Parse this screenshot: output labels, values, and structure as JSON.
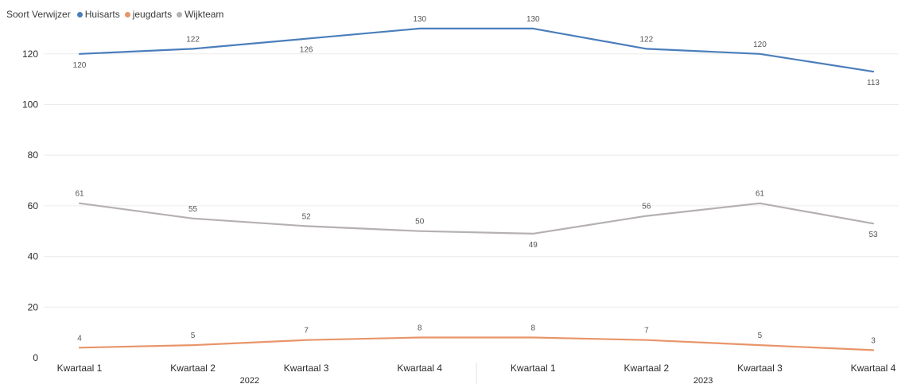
{
  "chart_data": {
    "type": "line",
    "legend": {
      "title": "Soort Verwijzer",
      "placement": "top-left"
    },
    "categories": [
      "Kwartaal 1",
      "Kwartaal 2",
      "Kwartaal 3",
      "Kwartaal 4",
      "Kwartaal 1",
      "Kwartaal 2",
      "Kwartaal 3",
      "Kwartaal 4"
    ],
    "groups": [
      {
        "label": "2022",
        "span": [
          0,
          3
        ]
      },
      {
        "label": "2023",
        "span": [
          4,
          7
        ]
      }
    ],
    "series": [
      {
        "name": "Huisarts",
        "color": "#4a7ebb",
        "values": [
          120,
          122,
          126,
          130,
          130,
          122,
          120,
          113
        ],
        "label_pos": [
          "below",
          "above",
          "below",
          "above",
          "above",
          "above",
          "above",
          "below"
        ]
      },
      {
        "name": "jeugdarts",
        "color": "#e8956a",
        "values": [
          4,
          5,
          7,
          8,
          8,
          7,
          5,
          3
        ],
        "label_pos": [
          "above",
          "above",
          "above",
          "above",
          "above",
          "above",
          "above",
          "above"
        ]
      },
      {
        "name": "Wijkteam",
        "color": "#b5b0b2",
        "values": [
          61,
          55,
          52,
          50,
          49,
          56,
          61,
          53
        ],
        "label_pos": [
          "above",
          "above",
          "above",
          "above",
          "below",
          "above",
          "above",
          "below"
        ]
      }
    ],
    "y_ticks": [
      0,
      20,
      40,
      60,
      80,
      100,
      120
    ],
    "ylim": [
      0,
      135
    ],
    "grid": true,
    "xlabel": "",
    "ylabel": ""
  }
}
